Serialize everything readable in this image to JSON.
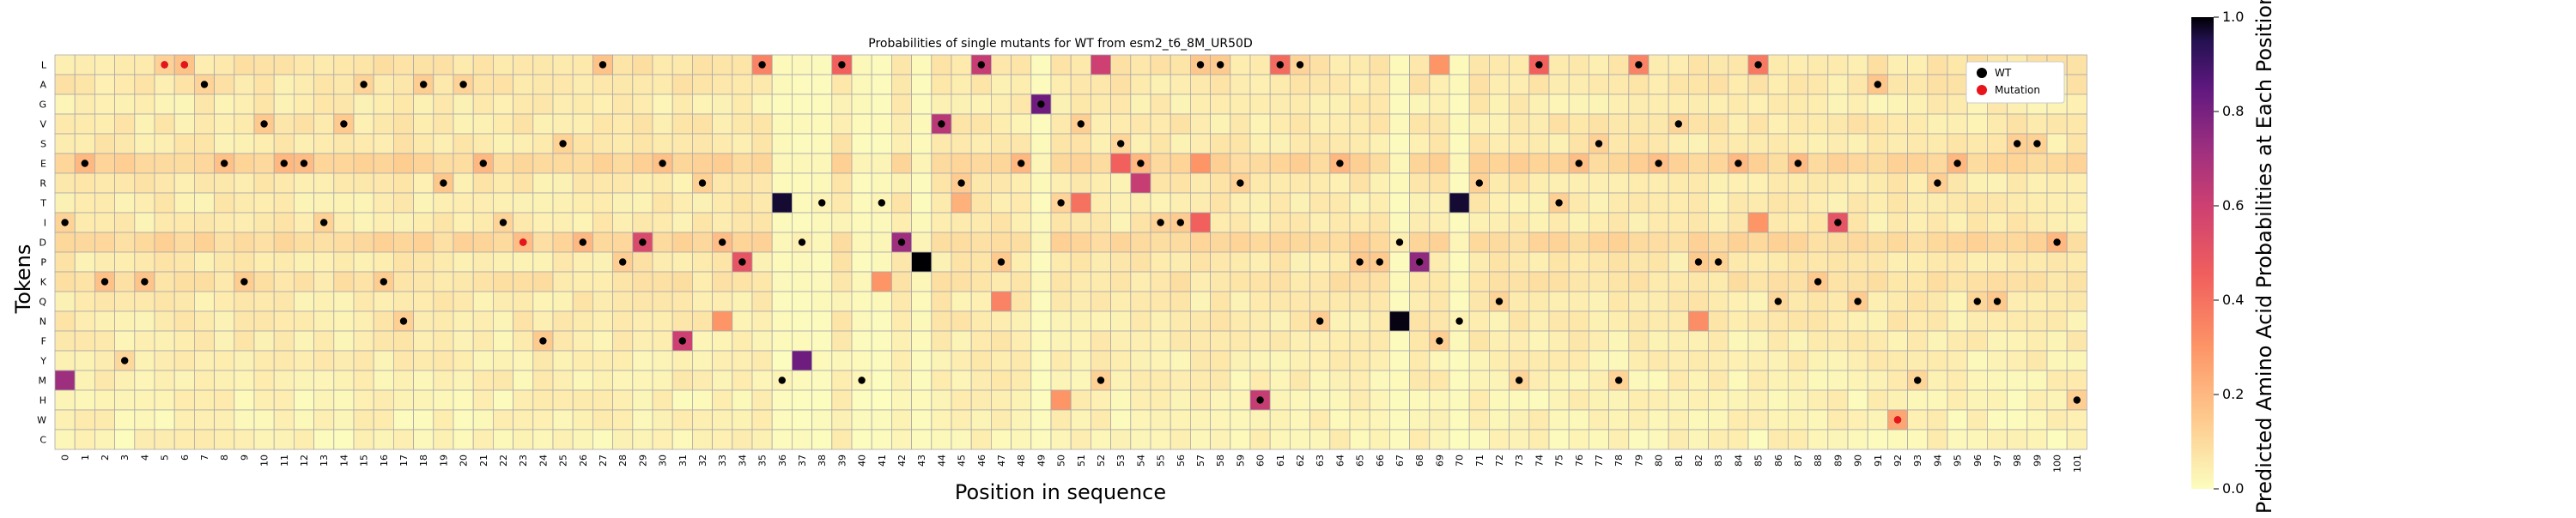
{
  "chart_data": {
    "type": "heatmap",
    "title": "Probabilities of single mutants for WT from esm2_t6_8M_UR50D",
    "xlabel": "Position in sequence",
    "ylabel": "Tokens",
    "colorbar_label": "Predicted Amino Acid Probabilities at Each Position",
    "colorbar_ticks": [
      "0.0",
      "0.2",
      "0.4",
      "0.6",
      "0.8",
      "1.0"
    ],
    "vmin": 0.0,
    "vmax": 1.0,
    "colormap": "magma_r",
    "grid": true,
    "legend_position": "top-right",
    "legend": [
      {
        "label": "WT",
        "color": "#000000"
      },
      {
        "label": "Mutation",
        "color": "#e8141b"
      }
    ],
    "tokens": [
      "L",
      "A",
      "G",
      "V",
      "S",
      "E",
      "R",
      "T",
      "I",
      "D",
      "P",
      "K",
      "Q",
      "N",
      "F",
      "Y",
      "M",
      "H",
      "W",
      "C"
    ],
    "positions": [
      "0",
      "1",
      "2",
      "3",
      "4",
      "5",
      "6",
      "7",
      "8",
      "9",
      "10",
      "11",
      "12",
      "13",
      "14",
      "15",
      "16",
      "17",
      "18",
      "19",
      "20",
      "21",
      "22",
      "23",
      "24",
      "25",
      "26",
      "27",
      "28",
      "29",
      "30",
      "31",
      "32",
      "33",
      "34",
      "35",
      "36",
      "37",
      "38",
      "39",
      "40",
      "41",
      "42",
      "43",
      "44",
      "45",
      "46",
      "47",
      "48",
      "49",
      "50",
      "51",
      "52",
      "53",
      "54",
      "55",
      "56",
      "57",
      "58",
      "59",
      "60",
      "61",
      "62",
      "63",
      "64",
      "65",
      "66",
      "67",
      "68",
      "69",
      "70",
      "71",
      "72",
      "73",
      "74",
      "75",
      "76",
      "77",
      "78",
      "79",
      "80",
      "81",
      "82",
      "83",
      "84",
      "85",
      "86",
      "87",
      "88",
      "89",
      "90",
      "91",
      "92",
      "93",
      "94",
      "95",
      "96",
      "97",
      "98",
      "99",
      "100",
      "101"
    ],
    "wt_sequence": [
      "I",
      "E",
      "K",
      "Y",
      "K",
      "L",
      "L",
      "A",
      "E",
      "K",
      "V",
      "E",
      "E",
      "I",
      "V",
      "A",
      "K",
      "N",
      "A",
      "R",
      "A",
      "E",
      "I",
      "D",
      "F",
      "S",
      "D",
      "L",
      "P",
      "D",
      "E",
      "F",
      "R",
      "D",
      "P",
      "L",
      "M",
      "D",
      "T",
      "L",
      "M",
      "T",
      "D",
      "P",
      "V",
      "R",
      "L",
      "P",
      "E",
      "G",
      "T",
      "V",
      "M",
      "S",
      "E",
      "I",
      "I",
      "L",
      "L",
      "R",
      "H",
      "L",
      "L",
      "N",
      "E",
      "P",
      "P",
      "D",
      "P",
      "F",
      "N",
      "R",
      "Q",
      "M",
      "L",
      "T",
      "E",
      "S",
      "M",
      "L",
      "E",
      "V",
      "P",
      "P",
      "E",
      "L",
      "Q",
      "E",
      "K",
      "I",
      "Q",
      "A",
      "W",
      "M",
      "R",
      "E",
      "Q",
      "Q",
      "S",
      "S",
      "D",
      "H"
    ],
    "mutations": [
      {
        "token": "L",
        "position": "5"
      },
      {
        "token": "L",
        "position": "6"
      },
      {
        "token": "D",
        "position": "23"
      },
      {
        "token": "W",
        "position": "92"
      }
    ],
    "highlights": [
      {
        "token": "M",
        "position": "0",
        "value": 0.72
      },
      {
        "token": "L",
        "position": "35",
        "value": 0.35
      },
      {
        "token": "L",
        "position": "39",
        "value": 0.45
      },
      {
        "token": "L",
        "position": "46",
        "value": 0.62
      },
      {
        "token": "L",
        "position": "52",
        "value": 0.6
      },
      {
        "token": "L",
        "position": "61",
        "value": 0.42
      },
      {
        "token": "L",
        "position": "74",
        "value": 0.45
      },
      {
        "token": "L",
        "position": "79",
        "value": 0.35
      },
      {
        "token": "L",
        "position": "85",
        "value": 0.38
      },
      {
        "token": "L",
        "position": "69",
        "value": 0.3
      },
      {
        "token": "V",
        "position": "44",
        "value": 0.65
      },
      {
        "token": "G",
        "position": "49",
        "value": 0.82
      },
      {
        "token": "T",
        "position": "36",
        "value": 0.97
      },
      {
        "token": "T",
        "position": "70",
        "value": 0.97
      },
      {
        "token": "T",
        "position": "51",
        "value": 0.4
      },
      {
        "token": "T",
        "position": "45",
        "value": 0.22
      },
      {
        "token": "D",
        "position": "42",
        "value": 0.72
      },
      {
        "token": "D",
        "position": "29",
        "value": 0.55
      },
      {
        "token": "P",
        "position": "43",
        "value": 1.0
      },
      {
        "token": "P",
        "position": "68",
        "value": 0.75
      },
      {
        "token": "P",
        "position": "34",
        "value": 0.5
      },
      {
        "token": "N",
        "position": "67",
        "value": 0.99
      },
      {
        "token": "N",
        "position": "33",
        "value": 0.3
      },
      {
        "token": "N",
        "position": "82",
        "value": 0.32
      },
      {
        "token": "F",
        "position": "31",
        "value": 0.6
      },
      {
        "token": "Y",
        "position": "37",
        "value": 0.82
      },
      {
        "token": "R",
        "position": "54",
        "value": 0.62
      },
      {
        "token": "E",
        "position": "53",
        "value": 0.45
      },
      {
        "token": "E",
        "position": "57",
        "value": 0.3
      },
      {
        "token": "I",
        "position": "89",
        "value": 0.5
      },
      {
        "token": "I",
        "position": "57",
        "value": 0.45
      },
      {
        "token": "I",
        "position": "85",
        "value": 0.3
      },
      {
        "token": "K",
        "position": "41",
        "value": 0.3
      },
      {
        "token": "H",
        "position": "50",
        "value": 0.3
      },
      {
        "token": "H",
        "position": "60",
        "value": 0.62
      },
      {
        "token": "Q",
        "position": "47",
        "value": 0.35
      },
      {
        "token": "W",
        "position": "92",
        "value": 0.25
      }
    ]
  }
}
